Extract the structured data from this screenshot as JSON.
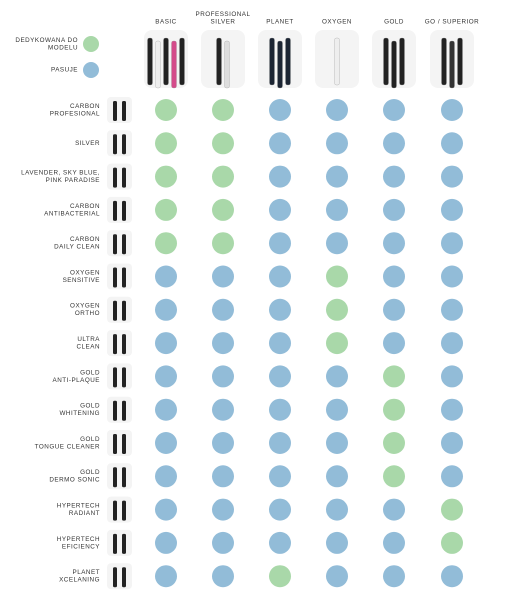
{
  "legend": [
    {
      "label": [
        "DEDYKOWANA DO",
        "MODELU"
      ],
      "color": "#a9d8a9"
    },
    {
      "label": [
        "PASUJE"
      ],
      "color": "#92bcd8"
    }
  ],
  "columns": [
    [
      "BASIC"
    ],
    [
      "PROFESSIONAL",
      "SILVER"
    ],
    [
      "PLANET"
    ],
    [
      "OXYGEN"
    ],
    [
      "GOLD"
    ],
    [
      "GO / SUPERIOR"
    ]
  ],
  "rows": [
    {
      "label": [
        "CARBON",
        "PROFESIONAL"
      ],
      "cells": [
        0,
        0,
        1,
        1,
        1,
        1
      ]
    },
    {
      "label": [
        "SILVER"
      ],
      "cells": [
        0,
        0,
        1,
        1,
        1,
        1
      ]
    },
    {
      "label": [
        "LAVENDER, SKY BLUE,",
        "PINK PARADISE"
      ],
      "cells": [
        0,
        0,
        1,
        1,
        1,
        1
      ]
    },
    {
      "label": [
        "CARBON",
        "ANTIBACTERIAL"
      ],
      "cells": [
        0,
        0,
        1,
        1,
        1,
        1
      ]
    },
    {
      "label": [
        "CARBON",
        "DAILY CLEAN"
      ],
      "cells": [
        0,
        0,
        1,
        1,
        1,
        1
      ]
    },
    {
      "label": [
        "OXYGEN",
        "SENSITIVE"
      ],
      "cells": [
        1,
        1,
        1,
        0,
        1,
        1
      ]
    },
    {
      "label": [
        "OXYGEN",
        "ORTHO"
      ],
      "cells": [
        1,
        1,
        1,
        0,
        1,
        1
      ]
    },
    {
      "label": [
        "ULTRA",
        "CLEAN"
      ],
      "cells": [
        1,
        1,
        1,
        0,
        1,
        1
      ]
    },
    {
      "label": [
        "GOLD",
        "ANTI-PLAQUE"
      ],
      "cells": [
        1,
        1,
        1,
        1,
        0,
        1
      ]
    },
    {
      "label": [
        "GOLD",
        "WHITENING"
      ],
      "cells": [
        1,
        1,
        1,
        1,
        0,
        1
      ]
    },
    {
      "label": [
        "GOLD",
        "TONGUE CLEANER"
      ],
      "cells": [
        1,
        1,
        1,
        1,
        0,
        1
      ]
    },
    {
      "label": [
        "GOLD",
        "DERMO SONIC"
      ],
      "cells": [
        1,
        1,
        1,
        1,
        0,
        1
      ]
    },
    {
      "label": [
        "HYPERTECH",
        "RADIANT"
      ],
      "cells": [
        1,
        1,
        1,
        1,
        1,
        0
      ]
    },
    {
      "label": [
        "HYPERTECH",
        "EFICIENCY"
      ],
      "cells": [
        1,
        1,
        1,
        1,
        1,
        0
      ]
    },
    {
      "label": [
        "PLANET",
        "XCELANING"
      ],
      "cells": [
        1,
        1,
        0,
        1,
        1,
        1
      ]
    }
  ]
}
